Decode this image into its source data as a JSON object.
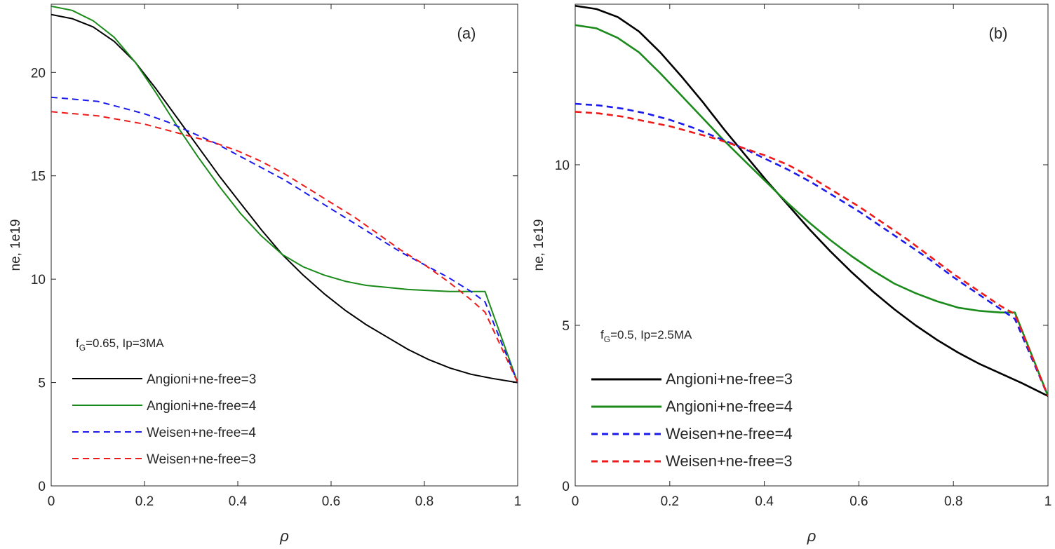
{
  "chart_data": [
    {
      "type": "line",
      "panel_label": "(a)",
      "xlabel": "ρ",
      "ylabel": "ne, 1e19",
      "xlim": [
        0,
        1
      ],
      "ylim": [
        0,
        23.3
      ],
      "xticks": [
        0,
        0.2,
        0.4,
        0.6,
        0.8,
        1
      ],
      "xtick_labels": [
        "0",
        "0.2",
        "0.4",
        "0.6",
        "0.8",
        "1"
      ],
      "yticks": [
        0,
        5,
        10,
        15,
        20
      ],
      "ytick_labels": [
        "0",
        "5",
        "10",
        "15",
        "20"
      ],
      "grid": false,
      "annotation": {
        "prefix": "f",
        "subscript": "G",
        "suffix": "=0.65, Ip=3MA"
      },
      "legend_position": "lower-left",
      "series": [
        {
          "name": "Angioni+ne-free=3",
          "color": "#000000",
          "dash": "solid",
          "x": [
            0,
            0.045,
            0.09,
            0.135,
            0.18,
            0.225,
            0.27,
            0.315,
            0.36,
            0.405,
            0.45,
            0.495,
            0.54,
            0.585,
            0.63,
            0.675,
            0.72,
            0.765,
            0.81,
            0.855,
            0.9,
            0.945,
            1.0
          ],
          "y": [
            22.8,
            22.6,
            22.2,
            21.5,
            20.5,
            19.2,
            17.8,
            16.4,
            15.0,
            13.7,
            12.4,
            11.2,
            10.2,
            9.3,
            8.5,
            7.8,
            7.2,
            6.6,
            6.1,
            5.7,
            5.4,
            5.2,
            5.0
          ]
        },
        {
          "name": "Angioni+ne-free=4",
          "color": "#1a8a1a",
          "dash": "solid",
          "x": [
            0,
            0.045,
            0.09,
            0.135,
            0.18,
            0.225,
            0.27,
            0.315,
            0.36,
            0.405,
            0.45,
            0.495,
            0.54,
            0.585,
            0.63,
            0.675,
            0.72,
            0.765,
            0.81,
            0.855,
            0.9,
            0.93,
            1.0
          ],
          "y": [
            23.2,
            23.0,
            22.5,
            21.7,
            20.5,
            19.0,
            17.4,
            15.9,
            14.5,
            13.2,
            12.1,
            11.2,
            10.6,
            10.2,
            9.9,
            9.7,
            9.6,
            9.5,
            9.45,
            9.4,
            9.4,
            9.4,
            5.0
          ]
        },
        {
          "name": "Weisen+ne-free=4",
          "color": "#1a1aee",
          "dash": "dashed",
          "x": [
            0,
            0.05,
            0.1,
            0.15,
            0.2,
            0.25,
            0.3,
            0.35,
            0.4,
            0.45,
            0.5,
            0.55,
            0.6,
            0.65,
            0.7,
            0.75,
            0.8,
            0.85,
            0.9,
            0.93,
            1.0
          ],
          "y": [
            18.8,
            18.7,
            18.6,
            18.3,
            18.0,
            17.6,
            17.1,
            16.6,
            16.0,
            15.4,
            14.8,
            14.1,
            13.4,
            12.7,
            12.0,
            11.3,
            10.7,
            10.1,
            9.4,
            8.9,
            5.0
          ]
        },
        {
          "name": "Weisen+ne-free=3",
          "color": "#ee1a1a",
          "dash": "dashed",
          "x": [
            0,
            0.05,
            0.1,
            0.15,
            0.2,
            0.25,
            0.3,
            0.35,
            0.4,
            0.45,
            0.5,
            0.55,
            0.6,
            0.65,
            0.7,
            0.75,
            0.8,
            0.85,
            0.9,
            0.93,
            1.0
          ],
          "y": [
            18.1,
            18.0,
            17.9,
            17.7,
            17.5,
            17.2,
            16.9,
            16.6,
            16.2,
            15.7,
            15.1,
            14.4,
            13.7,
            13.0,
            12.2,
            11.4,
            10.7,
            9.9,
            9.0,
            8.4,
            5.0
          ]
        }
      ]
    },
    {
      "type": "line",
      "panel_label": "(b)",
      "xlabel": "ρ",
      "ylabel": "ne, 1e19",
      "xlim": [
        0,
        1
      ],
      "ylim": [
        0,
        15
      ],
      "xticks": [
        0,
        0.2,
        0.4,
        0.6,
        0.8,
        1
      ],
      "xtick_labels": [
        "0",
        "0.2",
        "0.4",
        "0.6",
        "0.8",
        "1"
      ],
      "yticks": [
        0,
        5,
        10
      ],
      "ytick_labels": [
        "0",
        "5",
        "10"
      ],
      "grid": false,
      "annotation": {
        "prefix": "f",
        "subscript": "G",
        "suffix": "=0.5, Ip=2.5MA"
      },
      "legend_position": "lower-left",
      "series": [
        {
          "name": "Angioni+ne-free=3",
          "color": "#000000",
          "dash": "solid",
          "x": [
            0,
            0.045,
            0.09,
            0.135,
            0.18,
            0.225,
            0.27,
            0.315,
            0.36,
            0.405,
            0.45,
            0.495,
            0.54,
            0.585,
            0.63,
            0.675,
            0.72,
            0.765,
            0.81,
            0.855,
            0.9,
            0.945,
            1.0
          ],
          "y": [
            14.95,
            14.85,
            14.6,
            14.15,
            13.5,
            12.75,
            11.95,
            11.1,
            10.3,
            9.5,
            8.75,
            8.0,
            7.3,
            6.65,
            6.05,
            5.5,
            5.0,
            4.55,
            4.15,
            3.8,
            3.5,
            3.2,
            2.8
          ]
        },
        {
          "name": "Angioni+ne-free=4",
          "color": "#1a8a1a",
          "dash": "solid",
          "x": [
            0,
            0.045,
            0.09,
            0.135,
            0.18,
            0.225,
            0.27,
            0.315,
            0.36,
            0.405,
            0.45,
            0.495,
            0.54,
            0.585,
            0.63,
            0.675,
            0.72,
            0.765,
            0.81,
            0.855,
            0.9,
            0.93,
            1.0
          ],
          "y": [
            14.35,
            14.25,
            13.95,
            13.5,
            12.85,
            12.15,
            11.45,
            10.75,
            10.1,
            9.45,
            8.8,
            8.2,
            7.65,
            7.15,
            6.7,
            6.3,
            6.0,
            5.75,
            5.55,
            5.45,
            5.4,
            5.4,
            2.8
          ]
        },
        {
          "name": "Weisen+ne-free=4",
          "color": "#1a1aee",
          "dash": "dashed",
          "x": [
            0,
            0.05,
            0.1,
            0.15,
            0.2,
            0.25,
            0.3,
            0.35,
            0.4,
            0.45,
            0.5,
            0.55,
            0.6,
            0.65,
            0.7,
            0.75,
            0.8,
            0.85,
            0.9,
            0.93,
            1.0
          ],
          "y": [
            11.9,
            11.85,
            11.75,
            11.6,
            11.4,
            11.15,
            10.85,
            10.55,
            10.2,
            9.85,
            9.45,
            9.0,
            8.55,
            8.05,
            7.55,
            7.05,
            6.5,
            6.0,
            5.5,
            5.2,
            2.8
          ]
        },
        {
          "name": "Weisen+ne-free=3",
          "color": "#ee1a1a",
          "dash": "dashed",
          "x": [
            0,
            0.05,
            0.1,
            0.15,
            0.2,
            0.25,
            0.3,
            0.35,
            0.4,
            0.45,
            0.5,
            0.55,
            0.6,
            0.65,
            0.7,
            0.75,
            0.8,
            0.85,
            0.9,
            0.93,
            1.0
          ],
          "y": [
            11.65,
            11.6,
            11.5,
            11.35,
            11.2,
            11.0,
            10.8,
            10.55,
            10.3,
            10.0,
            9.6,
            9.15,
            8.7,
            8.2,
            7.7,
            7.15,
            6.6,
            6.1,
            5.6,
            5.35,
            2.8
          ]
        }
      ]
    }
  ]
}
